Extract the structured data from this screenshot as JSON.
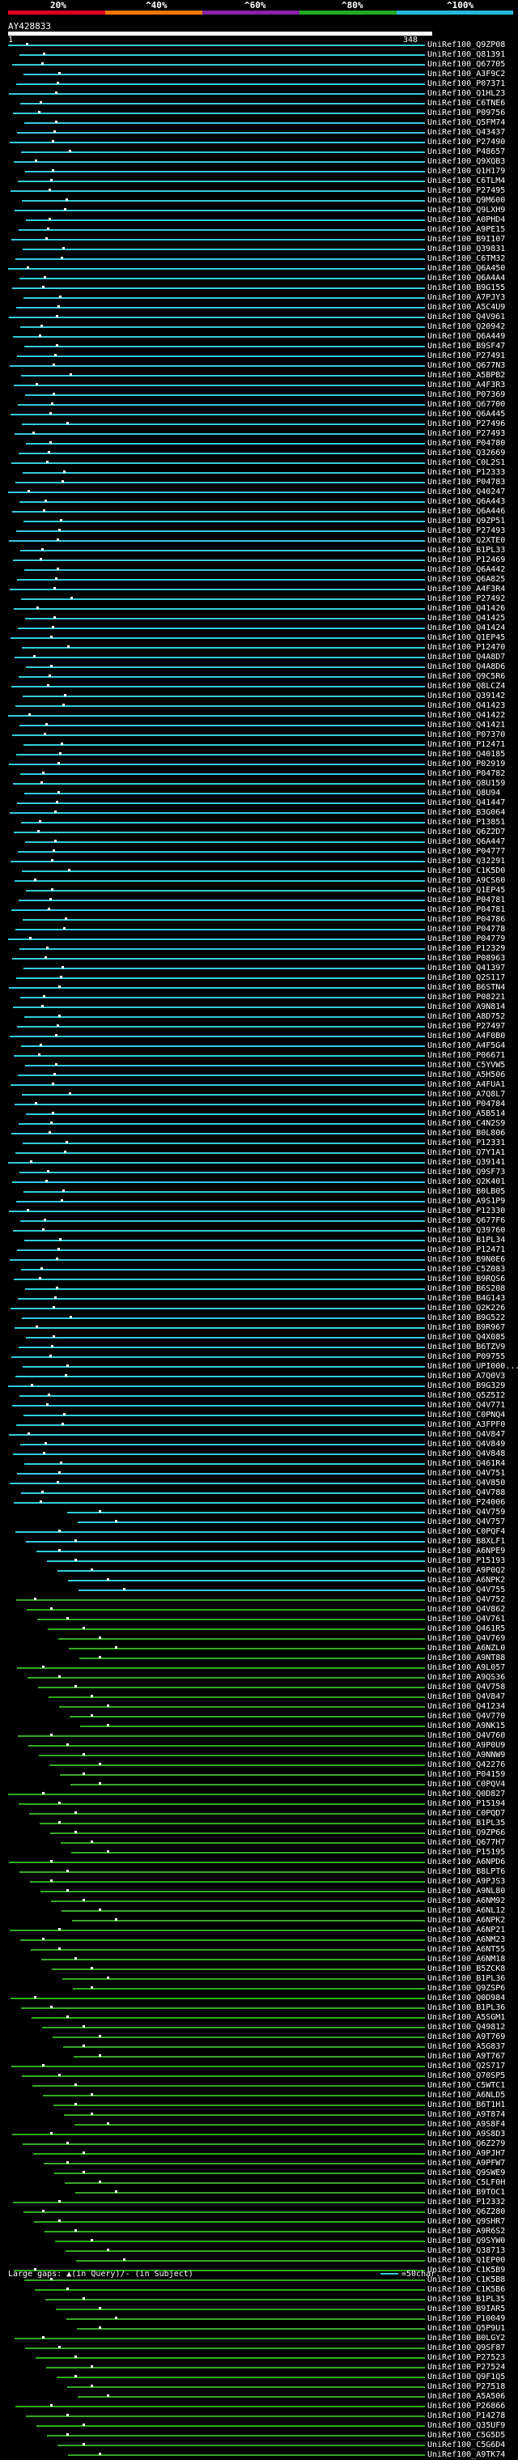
{
  "scale": {
    "ticks": [
      "20%",
      "^40%",
      "^60%",
      "^80%",
      "^100%"
    ],
    "colors": [
      "#e00020",
      "#ee7700",
      "#8822aa",
      "#22aa22",
      "#22bbdd"
    ]
  },
  "query": {
    "id": "AY428833",
    "start": "1",
    "end": "348"
  },
  "colors": {
    "cyan": "#33ccdd",
    "green": "#33aa22"
  },
  "hits": [
    "UniRef100_Q9ZP08",
    "UniRef100_Q81391",
    "UniRef100_Q67705",
    "UniRef100_A3F9C2",
    "UniRef100_P07371",
    "UniRef100_Q1HL23",
    "UniRef100_C6TNE6",
    "UniRef100_P09756",
    "UniRef100_Q5FM74",
    "UniRef100_Q43437",
    "UniRef100_P27490",
    "UniRef100_P48657",
    "UniRef100_Q9XQB3",
    "UniRef100_Q1H179",
    "UniRef100_C6TLM4",
    "UniRef100_P27495",
    "UniRef100_Q9M600",
    "UniRef100_Q9LXH9",
    "UniRef100_A0PHD4",
    "UniRef100_A9PE15",
    "UniRef100_B9I107",
    "UniRef100_Q39831",
    "UniRef100_C6TM32",
    "UniRef100_Q6A450",
    "UniRef100_Q6A4A4",
    "UniRef100_B9G155",
    "UniRef100_A7PJY3",
    "UniRef100_A5C4U9",
    "UniRef100_Q4V961",
    "UniRef100_Q20942",
    "UniRef100_Q6A449",
    "UniRef100_B9SF47",
    "UniRef100_P27491",
    "UniRef100_Q677N3",
    "UniRef100_A5BPB2",
    "UniRef100_A4F3R3",
    "UniRef100_P07369",
    "UniRef100_Q67700",
    "UniRef100_Q6A445",
    "UniRef100_P27496",
    "UniRef100_P27493",
    "UniRef100_P04780",
    "UniRef100_Q32669",
    "UniRef100_C0L2S1",
    "UniRef100_P12333",
    "UniRef100_P04783",
    "UniRef100_Q40247",
    "UniRef100_Q6A443",
    "UniRef100_Q6A446",
    "UniRef100_Q9ZP51",
    "UniRef100_P27493",
    "UniRef100_Q2XTE0",
    "UniRef100_B1PL33",
    "UniRef100_P12469",
    "UniRef100_Q6A442",
    "UniRef100_Q6A825",
    "UniRef100_A4F3R4",
    "UniRef100_P27492",
    "UniRef100_Q41426",
    "UniRef100_Q41425",
    "UniRef100_Q41424",
    "UniRef100_Q1EP45",
    "UniRef100_P12470",
    "UniRef100_Q4A8D7",
    "UniRef100_Q4A8D6",
    "UniRef100_Q9C5R6",
    "UniRef100_Q8LCZ4",
    "UniRef100_Q39142",
    "UniRef100_Q41423",
    "UniRef100_Q41422",
    "UniRef100_Q41421",
    "UniRef100_P07370",
    "UniRef100_P12471",
    "UniRef100_Q40185",
    "UniRef100_P02919",
    "UniRef100_P04782",
    "UniRef100_Q8U159",
    "UniRef100_Q8U94",
    "UniRef100_Q41447",
    "UniRef100_B3G064",
    "UniRef100_P13851",
    "UniRef100_Q6Z2D7",
    "UniRef100_Q6A447",
    "UniRef100_P04777",
    "UniRef100_Q32291",
    "UniRef100_C1K5D0",
    "UniRef100_A9CS60",
    "UniRef100_Q1EP45",
    "UniRef100_P04781",
    "UniRef100_P04781",
    "UniRef100_P04786",
    "UniRef100_P04778",
    "UniRef100_P04779",
    "UniRef100_P12329",
    "UniRef100_P08963",
    "UniRef100_Q41397",
    "UniRef100_Q2S117",
    "UniRef100_B6STN4",
    "UniRef100_P08221",
    "UniRef100_A9N814",
    "UniRef100_A8D752",
    "UniRef100_P27497",
    "UniRef100_A4F0B0",
    "UniRef100_A4F5G4",
    "UniRef100_P06671",
    "UniRef100_C5YVW5",
    "UniRef100_A5H506",
    "UniRef100_A4FUA1",
    "UniRef100_A7Q8L7",
    "UniRef100_P04784",
    "UniRef100_A5B514",
    "UniRef100_C4N2S9",
    "UniRef100_B0L806",
    "UniRef100_P12331",
    "UniRef100_Q7Y1A1",
    "UniRef100_Q39141",
    "UniRef100_Q9SF73",
    "UniRef100_Q2K401",
    "UniRef100_B0LB05",
    "UniRef100_A9S1P9",
    "UniRef100_P12330",
    "UniRef100_Q677F6",
    "UniRef100_Q39760",
    "UniRef100_B1PL34",
    "UniRef100_P12471",
    "UniRef100_B9N0E6",
    "UniRef100_C5Z083",
    "UniRef100_B9RQS6",
    "UniRef100_B6S208",
    "UniRef100_B4G143",
    "UniRef100_Q2K226",
    "UniRef100_B9G522",
    "UniRef100_B9R967",
    "UniRef100_Q4X085",
    "UniRef100_B6TZV9",
    "UniRef100_P09755",
    "UniRef100_UPI000...",
    "UniRef100_A7Q0V3",
    "UniRef100_B9G329",
    "UniRef100_Q5Z5I2",
    "UniRef100_Q4V771",
    "UniRef100_C0PNQ4",
    "UniRef100_A3FPF0",
    "UniRef100_Q4V847",
    "UniRef100_Q4V849",
    "UniRef100_Q4V848",
    "UniRef100_Q461R4",
    "UniRef100_Q4V751",
    "UniRef100_Q4V850",
    "UniRef100_Q4V788",
    "UniRef100_P24006",
    "UniRef100_Q4V759",
    "UniRef100_Q4V757",
    "UniRef100_C0PQF4",
    "UniRef100_B8XLF1",
    "UniRef100_A6NPE9",
    "UniRef100_P15193",
    "UniRef100_A9P0Q2",
    "UniRef100_A6NPK2",
    "UniRef100_Q4V755",
    "UniRef100_Q4V752",
    "UniRef100_Q4V862",
    "UniRef100_Q4V761",
    "UniRef100_Q461R5",
    "UniRef100_Q4V769",
    "UniRef100_A6NZL0",
    "UniRef100_A9NT88",
    "UniRef100_A9L057",
    "UniRef100_A9QS36",
    "UniRef100_Q4V758",
    "UniRef100_Q4V847",
    "UniRef100_Q41234",
    "UniRef100_Q4V770",
    "UniRef100_A9NK15",
    "UniRef100_Q4V760",
    "UniRef100_A9P0U9",
    "UniRef100_A9NNW9",
    "UniRef100_Q42276",
    "UniRef100_P04159",
    "UniRef100_C0PQV4",
    "UniRef100_Q0D827",
    "UniRef100_P15194",
    "UniRef100_C0PQD7",
    "UniRef100_B1PL35",
    "UniRef100_Q9ZP66",
    "UniRef100_Q677H7",
    "UniRef100_P15195",
    "UniRef100_A6NPD6",
    "UniRef100_B8LPT6",
    "UniRef100_A9PJS3",
    "UniRef100_A9NL80",
    "UniRef100_A6NM92",
    "UniRef100_A6NL12",
    "UniRef100_A6NPK2",
    "UniRef100_A6NP21",
    "UniRef100_A6NM23",
    "UniRef100_A6NT55",
    "UniRef100_A6NM18",
    "UniRef100_B5ZCK8",
    "UniRef100_B1PL36",
    "UniRef100_Q9ZSP6",
    "UniRef100_Q0D984",
    "UniRef100_B1PL36",
    "UniRef100_A5SGM1",
    "UniRef100_Q49812",
    "UniRef100_A9T769",
    "UniRef100_A5G837",
    "UniRef100_A9T767",
    "UniRef100_Q2S717",
    "UniRef100_Q70SP5",
    "UniRef100_C5WTC1",
    "UniRef100_A6NLD5",
    "UniRef100_B6T1H1",
    "UniRef100_A9T874",
    "UniRef100_A9S8F4",
    "UniRef100_A9S8D3",
    "UniRef100_Q6Z279",
    "UniRef100_A9PJH7",
    "UniRef100_A9PFW7",
    "UniRef100_Q9SWE9",
    "UniRef100_C5LF0H",
    "UniRef100_B9TOC1",
    "UniRef100_P12332",
    "UniRef100_Q6Z280",
    "UniRef100_Q9SHR7",
    "UniRef100_A9R6S2",
    "UniRef100_Q9SYW0",
    "UniRef100_Q38713",
    "UniRef100_Q1EP00",
    "UniRef100_C1K5B9",
    "UniRef100_C1K5B8",
    "UniRef100_C1K5B6",
    "UniRef100_B1PL35",
    "UniRef100_B9IAR5",
    "UniRef100_P10049",
    "UniRef100_Q5P9U1",
    "UniRef100_B0LGY2",
    "UniRef100_Q9SF87",
    "UniRef100_P27523",
    "UniRef100_P27524",
    "UniRef100_Q9F1Q5",
    "UniRef100_P27518",
    "UniRef100_A5A506",
    "UniRef100_P26866",
    "UniRef100_P14278",
    "UniRef100_Q35UF9",
    "UniRef100_C5G5D5",
    "UniRef100_C5G6D4",
    "UniRef100_A9TK74"
  ],
  "footer": {
    "text": "Large gaps: ▲(in Query)/- (in Subject)",
    "legend": "=50char."
  }
}
